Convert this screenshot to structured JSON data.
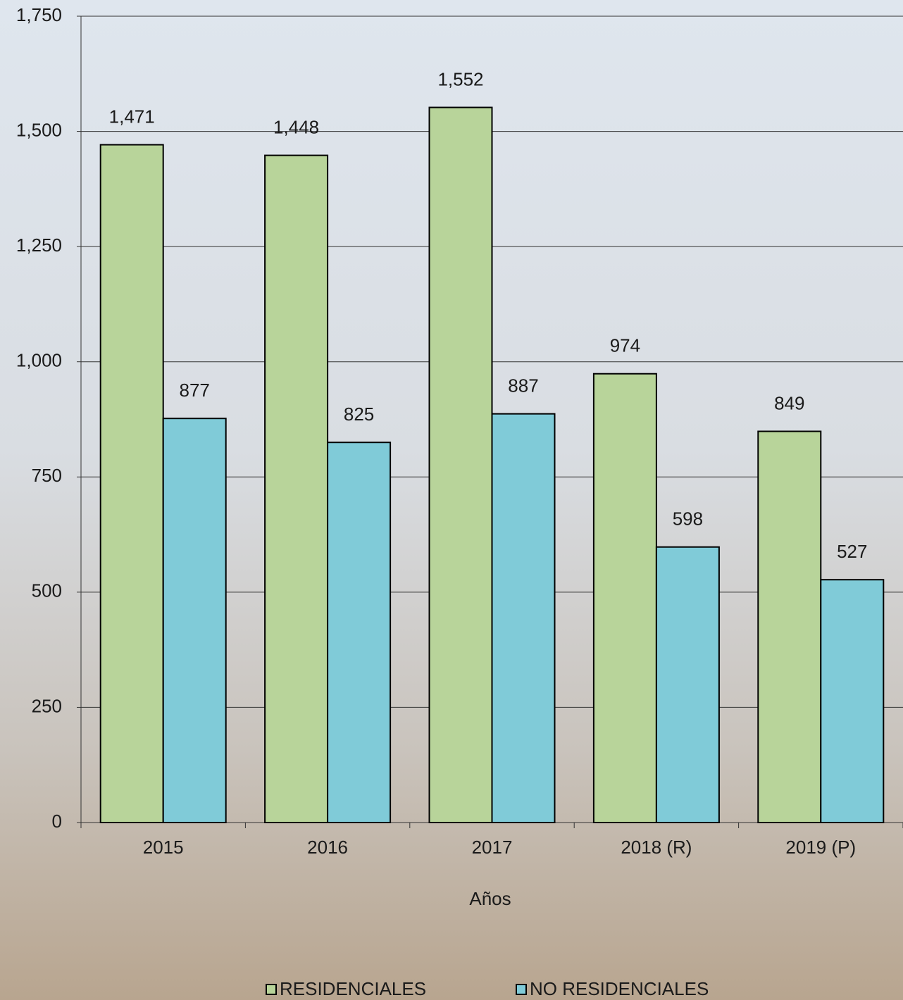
{
  "chart_data": {
    "type": "bar",
    "x_label": "Años",
    "categories": [
      "2015",
      "2016",
      "2017",
      "2018 (R)",
      "2019 (P)"
    ],
    "series": [
      {
        "name": "RESIDENCIALES",
        "color": "#b8d49a",
        "values": [
          1471,
          1448,
          1552,
          974,
          849
        ],
        "value_labels": [
          "1,471",
          "1,448",
          "1,552",
          "974",
          "849"
        ]
      },
      {
        "name": "NO RESIDENCIALES",
        "color": "#80cbd8",
        "values": [
          877,
          825,
          887,
          598,
          527
        ]
      }
    ],
    "ylim": [
      0,
      1750
    ],
    "yticks": [
      0,
      250,
      500,
      750,
      {
        "value": 1000,
        "label": "1,000"
      },
      {
        "value": 1250,
        "label": "1,250"
      },
      {
        "value": 1500,
        "label": "1,500"
      },
      {
        "value": 1750,
        "label": "1,750"
      }
    ],
    "grid": true,
    "legend": "bottom"
  }
}
